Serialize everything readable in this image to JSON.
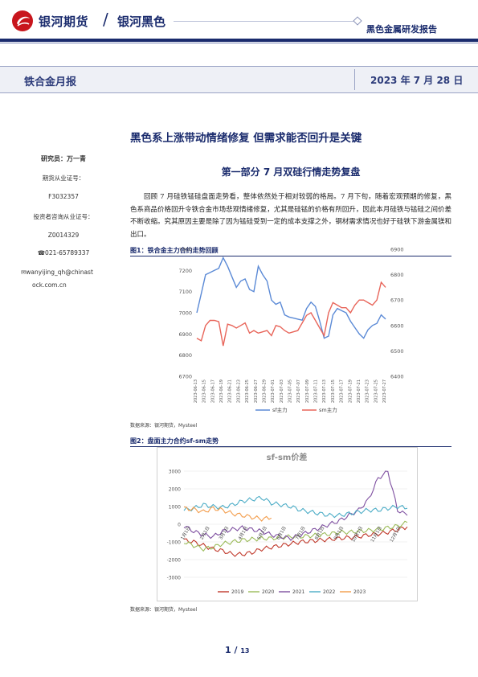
{
  "header": {
    "brand_main": "银河期货",
    "brand_slash": "/",
    "brand_sub": "银河黑色",
    "report_type": "黑色金属研发报告",
    "report_name": "铁合金月报",
    "date": "2023 年 7 月 28 日",
    "accent_color": "#1a2b6d",
    "logo_color": "#c8161d"
  },
  "title": "黑色系上涨带动情绪修复 但需求能否回升是关键",
  "section": "第一部分 7 月双硅行情走势复盘",
  "sidebar": {
    "researcher": "研究员：万一青",
    "license_label": "期货从业证号：",
    "license_no": "F3032357",
    "advisor_label": "投资者咨询从业证号：",
    "advisor_no": "Z0014329",
    "phone": "☎021-65789337",
    "email_line1": "✉wanyijing_qh@chinast",
    "email_line2": "ock.com.cn"
  },
  "paragraph": "回顾 7 月硅铁锰硅盘面走势看，整体依然处于相对较弱的格局。7 月下旬，随着宏观预期的修复，黑色系商品价格回升令铁合金市场悲观情绪修复，尤其是硅锰的价格有所回升，因此本月硅铁与锰硅之间价差不断收缩。究其原因主要是除了因为锰硅受到一定的成本支撑之外，钢材需求情况也好于硅铁下游金属镁和出口。",
  "figure1": {
    "label": "图1：铁合金主力合约走势回顾",
    "source": "数据来源：银河期货，Mysteel"
  },
  "figure2": {
    "label": "图2：盘面主力合约sf-sm走势",
    "source": "数据来源：银河期货，Mysteel"
  },
  "page": {
    "current": "1",
    "sep": " / ",
    "total": "13"
  },
  "chart_data": [
    {
      "type": "line",
      "categories": [
        "2023-06-13",
        "2023-06-15",
        "2023-06-17",
        "2023-06-19",
        "2023-06-21",
        "2023-06-23",
        "2023-06-25",
        "2023-06-27",
        "2023-06-29",
        "2023-07-01",
        "2023-07-03",
        "2023-07-05",
        "2023-07-07",
        "2023-07-09",
        "2023-07-11",
        "2023-07-13",
        "2023-07-15",
        "2023-07-17",
        "2023-07-19",
        "2023-07-21",
        "2023-07-23",
        "2023-07-25",
        "2023-07-27"
      ],
      "series": [
        {
          "name": "sf主力",
          "axis": "left",
          "color": "#5b8ad6",
          "x": [
            0,
            1,
            2,
            3,
            4,
            5,
            6,
            7,
            8,
            9,
            10,
            11,
            12,
            13,
            14,
            15,
            16,
            17,
            18,
            19,
            20,
            21,
            22,
            23,
            24,
            25,
            26,
            27,
            28,
            29,
            30,
            31,
            32,
            33,
            34,
            35,
            36,
            37,
            38,
            39,
            40,
            41,
            42,
            43
          ],
          "values": [
            7000,
            7090,
            7180,
            7190,
            7200,
            7210,
            7260,
            7220,
            7170,
            7120,
            7150,
            7160,
            7110,
            7100,
            7220,
            7180,
            7150,
            7060,
            7040,
            7050,
            6990,
            6980,
            6975,
            6970,
            6965,
            7020,
            7050,
            7030,
            6960,
            6880,
            6890,
            6990,
            7020,
            7010,
            7000,
            6960,
            6930,
            6900,
            6880,
            6920,
            6940,
            6950,
            6990,
            6970
          ]
        },
        {
          "name": "sm主力",
          "axis": "right",
          "color": "#e8655a",
          "x": [
            0,
            1,
            2,
            3,
            4,
            5,
            6,
            7,
            8,
            9,
            10,
            11,
            12,
            13,
            14,
            15,
            16,
            17,
            18,
            19,
            20,
            21,
            22,
            23,
            24,
            25,
            26,
            27,
            28,
            29,
            30,
            31,
            32,
            33,
            34,
            35,
            36,
            37,
            38,
            39,
            40,
            41,
            42,
            43
          ],
          "values": [
            6550,
            6540,
            6600,
            6620,
            6620,
            6615,
            6520,
            6605,
            6600,
            6590,
            6600,
            6610,
            6570,
            6580,
            6570,
            6575,
            6580,
            6560,
            6600,
            6595,
            6580,
            6570,
            6575,
            6580,
            6610,
            6640,
            6650,
            6620,
            6590,
            6560,
            6650,
            6690,
            6680,
            6670,
            6670,
            6650,
            6680,
            6700,
            6700,
            6690,
            6680,
            6700,
            6770,
            6750
          ]
        }
      ],
      "ylim_left": [
        6700,
        7300
      ],
      "ylim_right": [
        6400,
        6900
      ],
      "yticks_left": [
        "7300",
        "7200",
        "7100",
        "7000",
        "6900",
        "6800",
        "6700"
      ],
      "yticks_right": [
        "6900",
        "6800",
        "6700",
        "6600",
        "6500",
        "6400"
      ],
      "legend": [
        "sf主力",
        "sm主力"
      ],
      "legend_position": "bottom",
      "grid": false
    },
    {
      "type": "line",
      "title": "sf-sm价差",
      "ylim": [
        -3000,
        3000
      ],
      "yticks": [
        "3000",
        "2000",
        "1000",
        "0",
        "-1000",
        "-2000",
        "-3000"
      ],
      "xticks": [
        "1月1日",
        "2月1日",
        "3月1日",
        "4月1日",
        "5月1日",
        "6月1日",
        "7月1日",
        "8月1日",
        "9月1日",
        "10月1日",
        "11月1日",
        "12月1日"
      ],
      "series": [
        {
          "name": "2019",
          "color": "#c0392b",
          "values": [
            -900,
            -1000,
            -1200,
            -1400,
            -1500,
            -1700,
            -1700,
            -1600,
            -1400,
            -1300,
            -1200,
            -1100,
            -1000,
            -950,
            -900,
            -850,
            -800,
            -750,
            -700,
            -600,
            -550,
            -450,
            -300,
            -150
          ]
        },
        {
          "name": "2020",
          "color": "#9bbb59",
          "values": [
            -1000,
            -1200,
            -1400,
            -1300,
            -1100,
            -1000,
            -900,
            -850,
            -800,
            -800,
            -750,
            -700,
            -700,
            -650,
            -600,
            -550,
            -450,
            -450,
            -400,
            -350,
            -300,
            -200,
            -100,
            100
          ]
        },
        {
          "name": "2021",
          "color": "#7e4fa0",
          "values": [
            -100,
            -400,
            -600,
            -700,
            -400,
            -300,
            -200,
            -300,
            -400,
            -600,
            -700,
            -800,
            -600,
            -400,
            -200,
            0,
            200,
            500,
            800,
            1400,
            2600,
            3000,
            800,
            500
          ]
        },
        {
          "name": "2022",
          "color": "#4bacc6",
          "values": [
            800,
            900,
            1100,
            1000,
            950,
            1100,
            1300,
            1400,
            1500,
            1200,
            1100,
            1000,
            800,
            700,
            600,
            500,
            500,
            600,
            700,
            800,
            800,
            900,
            1000,
            900
          ]
        },
        {
          "name": "2023",
          "color": "#f39c4a",
          "values": [
            900,
            850,
            700,
            900,
            800,
            600,
            500,
            400,
            300,
            350
          ]
        }
      ],
      "legend_position": "bottom",
      "grid": true
    }
  ]
}
